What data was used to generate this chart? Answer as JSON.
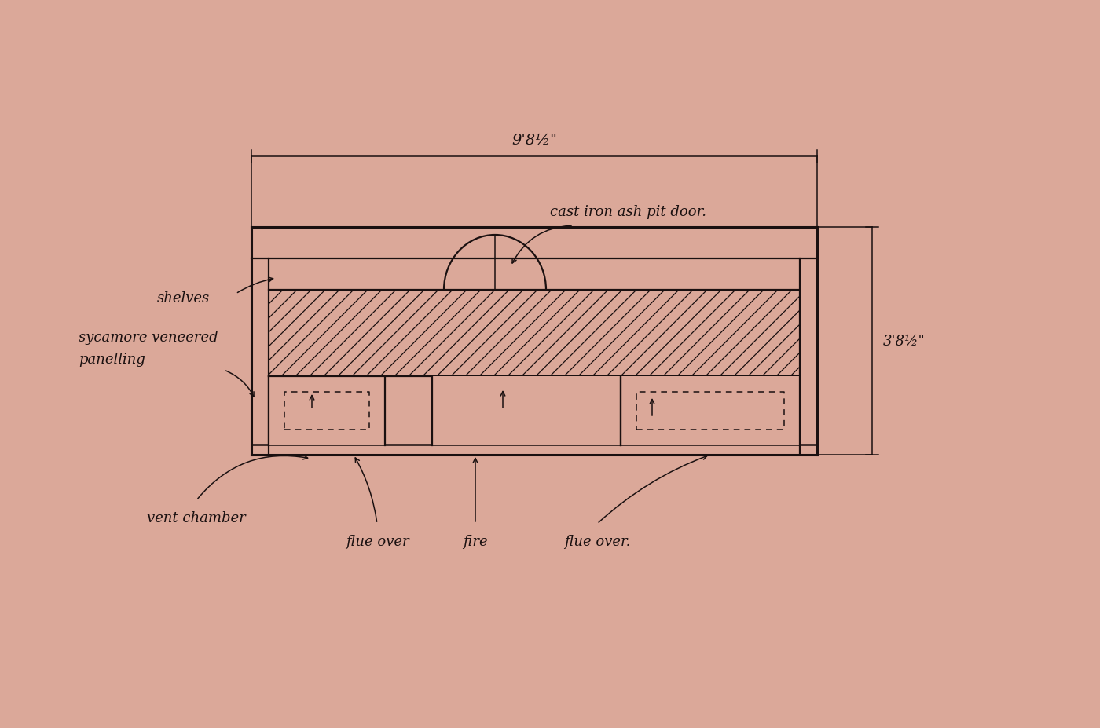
{
  "bg_color": "#dba899",
  "ink_color": "#1a1010",
  "fig_width": 14.0,
  "fig_height": 9.28,
  "dim_label_top": "9'8½\"",
  "dim_label_right": "3'8½\"",
  "label_cast_iron": "cast iron ash pit door.",
  "label_shelves": "shelves",
  "label_sycamore": "sycamore veneered",
  "label_panelling": "panelling",
  "label_vent": "vent chamber",
  "label_flue1": "flue over",
  "label_fire": "fire",
  "label_flue2": "flue over."
}
